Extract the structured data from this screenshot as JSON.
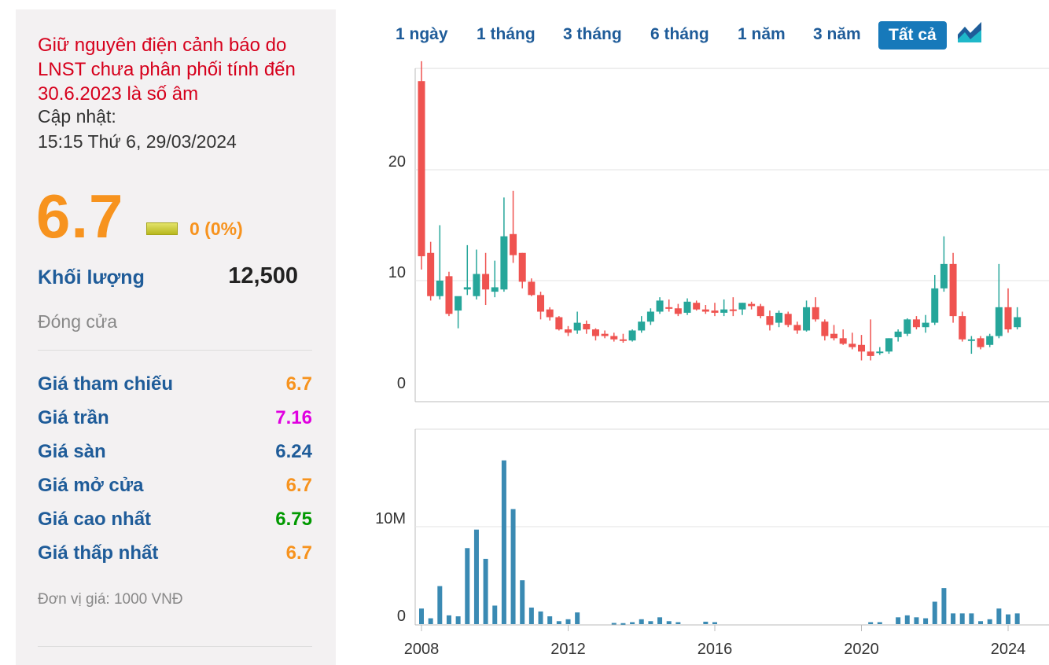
{
  "warning": "Giữ nguyên điện cảnh báo do LNST chưa phân phối tính đến 30.6.2023 là số âm",
  "update": {
    "label": "Cập nhật:",
    "time": "15:15 Thứ 6, 29/03/2024"
  },
  "price": "6.7",
  "change": "0 (0%)",
  "volume": {
    "label": "Khối lượng",
    "value": "12,500"
  },
  "status": "Đóng cửa",
  "price_rows": [
    {
      "label": "Giá tham chiếu",
      "value": "6.7",
      "color": "#f7931e"
    },
    {
      "label": "Giá trần",
      "value": "7.16",
      "color": "#e000e0"
    },
    {
      "label": "Giá sàn",
      "value": "6.24",
      "color": "#1f5c99"
    },
    {
      "label": "Giá mở cửa",
      "value": "6.7",
      "color": "#f7931e"
    },
    {
      "label": "Giá cao nhất",
      "value": "6.75",
      "color": "#009900"
    },
    {
      "label": "Giá thấp nhất",
      "value": "6.7",
      "color": "#f7931e"
    }
  ],
  "unit": "Đơn vị giá: 1000 VNĐ",
  "ranges": [
    "1 ngày",
    "1 tháng",
    "3 tháng",
    "6 tháng",
    "1 năm",
    "3 năm",
    "Tất cả"
  ],
  "active_range": "Tất cả",
  "icons": {
    "chart_toggle": "area-chart-icon",
    "flat_change": "flat-change-icon"
  },
  "colors": {
    "up": "#26a69a",
    "down": "#ef5350",
    "volume": "#3a8ab3",
    "accent": "#1779ba"
  },
  "chart_data": {
    "type": "candlestick",
    "x_ticks": [
      "2008",
      "2012",
      "2016",
      "2020",
      "2024"
    ],
    "price_axis": {
      "ticks": [
        "0",
        "10",
        "20"
      ],
      "ylim": [
        0,
        30
      ]
    },
    "volume_axis": {
      "ticks": [
        "0",
        "10M"
      ],
      "ylim": [
        0,
        18000000
      ]
    },
    "candles": [
      {
        "t": 2008.0,
        "o": 28,
        "h": 29.8,
        "l": 11,
        "c": 12.2
      },
      {
        "t": 2008.25,
        "o": 12.5,
        "h": 13.5,
        "l": 8.2,
        "c": 8.6
      },
      {
        "t": 2008.5,
        "o": 8.6,
        "h": 15,
        "l": 8.3,
        "c": 10
      },
      {
        "t": 2008.75,
        "o": 10.4,
        "h": 10.8,
        "l": 6.8,
        "c": 7
      },
      {
        "t": 2009.0,
        "o": 7.3,
        "h": 8.5,
        "l": 5.7,
        "c": 8.6
      },
      {
        "t": 2009.25,
        "o": 9.2,
        "h": 13.2,
        "l": 8.7,
        "c": 9.4
      },
      {
        "t": 2009.5,
        "o": 8.6,
        "h": 12.8,
        "l": 8.3,
        "c": 10.6
      },
      {
        "t": 2009.75,
        "o": 10.6,
        "h": 12.5,
        "l": 7.8,
        "c": 9.2
      },
      {
        "t": 2010.0,
        "o": 9,
        "h": 11.8,
        "l": 8.5,
        "c": 9.4
      },
      {
        "t": 2010.25,
        "o": 9.2,
        "h": 17.5,
        "l": 9,
        "c": 14
      },
      {
        "t": 2010.5,
        "o": 14.2,
        "h": 18.1,
        "l": 11.6,
        "c": 12.3
      },
      {
        "t": 2010.75,
        "o": 12.5,
        "h": 12.5,
        "l": 9.3,
        "c": 9.9
      },
      {
        "t": 2011.0,
        "o": 9.9,
        "h": 10.2,
        "l": 8.6,
        "c": 8.7
      },
      {
        "t": 2011.25,
        "o": 8.7,
        "h": 9,
        "l": 6.5,
        "c": 7.2
      },
      {
        "t": 2011.5,
        "o": 7.4,
        "h": 7.6,
        "l": 6.4,
        "c": 6.7
      },
      {
        "t": 2011.75,
        "o": 6.7,
        "h": 6.8,
        "l": 5.5,
        "c": 5.6
      },
      {
        "t": 2012.0,
        "o": 5.6,
        "h": 5.9,
        "l": 5,
        "c": 5.3
      },
      {
        "t": 2012.25,
        "o": 5.5,
        "h": 7.2,
        "l": 5.2,
        "c": 6.2
      },
      {
        "t": 2012.5,
        "o": 6.1,
        "h": 6.4,
        "l": 5.2,
        "c": 5.6
      },
      {
        "t": 2012.75,
        "o": 5.6,
        "h": 5.7,
        "l": 4.6,
        "c": 5
      },
      {
        "t": 2013.0,
        "o": 5.2,
        "h": 5.5,
        "l": 4.8,
        "c": 5
      },
      {
        "t": 2013.25,
        "o": 5,
        "h": 5.3,
        "l": 4.5,
        "c": 4.7
      },
      {
        "t": 2013.5,
        "o": 4.7,
        "h": 5.2,
        "l": 4.4,
        "c": 4.6
      },
      {
        "t": 2013.75,
        "o": 4.6,
        "h": 5.6,
        "l": 4.5,
        "c": 5.5
      },
      {
        "t": 2014.0,
        "o": 5.5,
        "h": 6.8,
        "l": 5.3,
        "c": 6.3
      },
      {
        "t": 2014.25,
        "o": 6.3,
        "h": 7.5,
        "l": 6,
        "c": 7.2
      },
      {
        "t": 2014.5,
        "o": 7.2,
        "h": 8.5,
        "l": 7,
        "c": 8.2
      },
      {
        "t": 2014.75,
        "o": 7.6,
        "h": 8.3,
        "l": 7.2,
        "c": 7.5
      },
      {
        "t": 2015.0,
        "o": 7.5,
        "h": 7.9,
        "l": 6.8,
        "c": 7
      },
      {
        "t": 2015.25,
        "o": 7.1,
        "h": 8.4,
        "l": 6.9,
        "c": 8.1
      },
      {
        "t": 2015.5,
        "o": 8,
        "h": 8.2,
        "l": 7.3,
        "c": 7.4
      },
      {
        "t": 2015.75,
        "o": 7.4,
        "h": 7.8,
        "l": 7,
        "c": 7.2
      },
      {
        "t": 2016.0,
        "o": 7.3,
        "h": 8,
        "l": 6.8,
        "c": 7.1
      },
      {
        "t": 2016.25,
        "o": 7.1,
        "h": 8.3,
        "l": 6.8,
        "c": 7.4
      },
      {
        "t": 2016.5,
        "o": 7.4,
        "h": 8.5,
        "l": 6.8,
        "c": 7.3
      },
      {
        "t": 2016.75,
        "o": 7.4,
        "h": 8,
        "l": 6.9,
        "c": 8
      },
      {
        "t": 2017.0,
        "o": 7.9,
        "h": 8.1,
        "l": 7.4,
        "c": 7.7
      },
      {
        "t": 2017.25,
        "o": 7.7,
        "h": 7.9,
        "l": 6.6,
        "c": 6.8
      },
      {
        "t": 2017.5,
        "o": 6.8,
        "h": 7.3,
        "l": 5.5,
        "c": 6
      },
      {
        "t": 2017.75,
        "o": 6.2,
        "h": 7.3,
        "l": 5.8,
        "c": 7.1
      },
      {
        "t": 2018.0,
        "o": 7,
        "h": 7.2,
        "l": 5.8,
        "c": 6
      },
      {
        "t": 2018.25,
        "o": 6,
        "h": 6.3,
        "l": 5.2,
        "c": 5.5
      },
      {
        "t": 2018.5,
        "o": 5.5,
        "h": 8.2,
        "l": 5.4,
        "c": 7.6
      },
      {
        "t": 2018.75,
        "o": 7.6,
        "h": 8.5,
        "l": 6.3,
        "c": 6.5
      },
      {
        "t": 2019.0,
        "o": 6.3,
        "h": 6.5,
        "l": 4.6,
        "c": 5
      },
      {
        "t": 2019.25,
        "o": 5.2,
        "h": 6,
        "l": 4.6,
        "c": 4.8
      },
      {
        "t": 2019.5,
        "o": 4.8,
        "h": 5.6,
        "l": 4.2,
        "c": 4.3
      },
      {
        "t": 2019.75,
        "o": 4.3,
        "h": 5.3,
        "l": 3.8,
        "c": 4
      },
      {
        "t": 2020.0,
        "o": 4.2,
        "h": 5.1,
        "l": 2.8,
        "c": 3.6
      },
      {
        "t": 2020.25,
        "o": 3.6,
        "h": 6.5,
        "l": 2.8,
        "c": 3.2
      },
      {
        "t": 2020.5,
        "o": 3.5,
        "h": 4,
        "l": 3.3,
        "c": 3.6
      },
      {
        "t": 2020.75,
        "o": 3.6,
        "h": 4.8,
        "l": 3.4,
        "c": 4.8
      },
      {
        "t": 2021.0,
        "o": 4.9,
        "h": 5.6,
        "l": 4.5,
        "c": 5.4
      },
      {
        "t": 2021.25,
        "o": 5.2,
        "h": 6.6,
        "l": 5,
        "c": 6.5
      },
      {
        "t": 2021.5,
        "o": 6.5,
        "h": 6.8,
        "l": 5.6,
        "c": 5.8
      },
      {
        "t": 2021.75,
        "o": 5.8,
        "h": 6.9,
        "l": 5.3,
        "c": 6.2
      },
      {
        "t": 2022.0,
        "o": 6.2,
        "h": 10.5,
        "l": 6,
        "c": 9.3
      },
      {
        "t": 2022.25,
        "o": 9.3,
        "h": 14,
        "l": 9,
        "c": 11.5
      },
      {
        "t": 2022.5,
        "o": 11.5,
        "h": 12.5,
        "l": 6.2,
        "c": 6.8
      },
      {
        "t": 2022.75,
        "o": 6.8,
        "h": 7.2,
        "l": 4.5,
        "c": 4.7
      },
      {
        "t": 2023.0,
        "o": 4.7,
        "h": 5,
        "l": 3.4,
        "c": 4.7
      },
      {
        "t": 2023.25,
        "o": 4.8,
        "h": 5,
        "l": 3.8,
        "c": 4
      },
      {
        "t": 2023.5,
        "o": 4.2,
        "h": 5.2,
        "l": 4,
        "c": 5
      },
      {
        "t": 2023.75,
        "o": 5,
        "h": 11.5,
        "l": 4.8,
        "c": 7.6
      },
      {
        "t": 2024.0,
        "o": 7.6,
        "h": 9.3,
        "l": 5.3,
        "c": 5.6
      },
      {
        "t": 2024.25,
        "o": 5.8,
        "h": 7.6,
        "l": 5.6,
        "c": 6.7
      }
    ],
    "volume": [
      {
        "t": 2008.0,
        "v": 1600000
      },
      {
        "t": 2008.25,
        "v": 600000
      },
      {
        "t": 2008.5,
        "v": 3900000
      },
      {
        "t": 2008.75,
        "v": 900000
      },
      {
        "t": 2009.0,
        "v": 800000
      },
      {
        "t": 2009.25,
        "v": 7800000
      },
      {
        "t": 2009.5,
        "v": 9700000
      },
      {
        "t": 2009.75,
        "v": 6700000
      },
      {
        "t": 2010.0,
        "v": 1900000
      },
      {
        "t": 2010.25,
        "v": 16800000
      },
      {
        "t": 2010.5,
        "v": 11800000
      },
      {
        "t": 2010.75,
        "v": 4500000
      },
      {
        "t": 2011.0,
        "v": 1700000
      },
      {
        "t": 2011.25,
        "v": 1300000
      },
      {
        "t": 2011.5,
        "v": 800000
      },
      {
        "t": 2011.75,
        "v": 300000
      },
      {
        "t": 2012.0,
        "v": 500000
      },
      {
        "t": 2012.25,
        "v": 1200000
      },
      {
        "t": 2013.25,
        "v": 120000
      },
      {
        "t": 2013.5,
        "v": 100000
      },
      {
        "t": 2013.75,
        "v": 200000
      },
      {
        "t": 2014.0,
        "v": 500000
      },
      {
        "t": 2014.25,
        "v": 300000
      },
      {
        "t": 2014.5,
        "v": 700000
      },
      {
        "t": 2014.75,
        "v": 300000
      },
      {
        "t": 2015.0,
        "v": 200000
      },
      {
        "t": 2015.75,
        "v": 250000
      },
      {
        "t": 2016.0,
        "v": 200000
      },
      {
        "t": 2020.25,
        "v": 200000
      },
      {
        "t": 2020.5,
        "v": 200000
      },
      {
        "t": 2021.0,
        "v": 700000
      },
      {
        "t": 2021.25,
        "v": 900000
      },
      {
        "t": 2021.5,
        "v": 700000
      },
      {
        "t": 2021.75,
        "v": 600000
      },
      {
        "t": 2022.0,
        "v": 2300000
      },
      {
        "t": 2022.25,
        "v": 3700000
      },
      {
        "t": 2022.5,
        "v": 1100000
      },
      {
        "t": 2022.75,
        "v": 1100000
      },
      {
        "t": 2023.0,
        "v": 1100000
      },
      {
        "t": 2023.25,
        "v": 300000
      },
      {
        "t": 2023.5,
        "v": 500000
      },
      {
        "t": 2023.75,
        "v": 1600000
      },
      {
        "t": 2024.0,
        "v": 1000000
      },
      {
        "t": 2024.25,
        "v": 1100000
      }
    ],
    "grid": true
  }
}
